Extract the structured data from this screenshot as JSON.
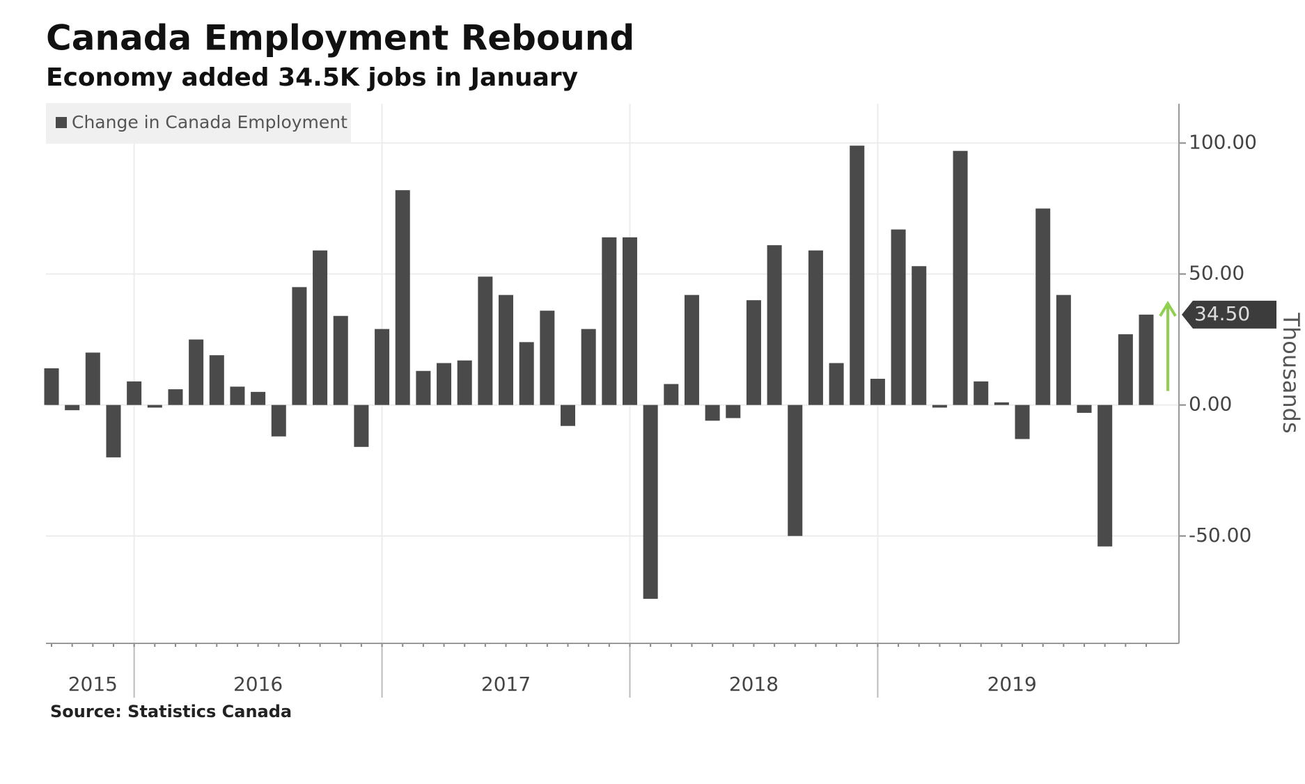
{
  "chart_data": {
    "type": "bar",
    "title": "Canada Employment Rebound",
    "subtitle": "Economy added 34.5K jobs in January",
    "source": "Source: Statistics Canada",
    "y_axis_label": "Thousands",
    "categories": [
      "2015",
      null,
      null,
      null,
      "2016",
      null,
      null,
      null,
      null,
      null,
      null,
      null,
      null,
      null,
      null,
      null,
      "2017",
      null,
      null,
      null,
      null,
      null,
      null,
      null,
      null,
      null,
      null,
      null,
      "2018",
      null,
      null,
      null,
      null,
      null,
      null,
      null,
      null,
      null,
      null,
      null,
      "2019",
      null,
      null,
      null,
      null,
      null,
      null,
      null,
      null,
      null,
      null,
      null,
      null,
      null
    ],
    "series": [
      {
        "name": "Change in Canada Employment",
        "color": "#4a4a4a",
        "values": [
          14,
          -2,
          20,
          -20,
          9,
          -1,
          6,
          25,
          19,
          7,
          5,
          -12,
          45,
          59,
          34,
          -16,
          29,
          82,
          13,
          16,
          17,
          49,
          42,
          24,
          36,
          -8,
          29,
          64,
          64,
          -74,
          8,
          42,
          -6,
          -5,
          40,
          61,
          -50,
          59,
          16,
          99,
          10,
          67,
          53,
          -1,
          97,
          9,
          1,
          -13,
          75,
          42,
          -3,
          -54,
          27,
          34.5
        ],
        "value_labels": [
          null,
          null,
          null,
          null,
          null,
          null,
          null,
          null,
          null,
          null,
          null,
          null,
          null,
          null,
          null,
          null,
          null,
          null,
          null,
          null,
          null,
          null,
          null,
          null,
          null,
          null,
          null,
          null,
          null,
          null,
          null,
          null,
          null,
          null,
          null,
          null,
          null,
          null,
          null,
          null,
          null,
          null,
          null,
          null,
          null,
          null,
          null,
          null,
          null,
          null,
          null,
          null,
          null,
          "34.50"
        ]
      }
    ],
    "ylim": [
      -91,
      115
    ],
    "yticks": [
      {
        "value": -50,
        "label": "-50.00"
      },
      {
        "value": 0,
        "label": "0.00"
      },
      {
        "value": 50,
        "label": "50.00"
      },
      {
        "value": 100,
        "label": "100.00"
      }
    ],
    "grid": true,
    "legend": "top-left",
    "highlight_color": "#8fd14f"
  }
}
